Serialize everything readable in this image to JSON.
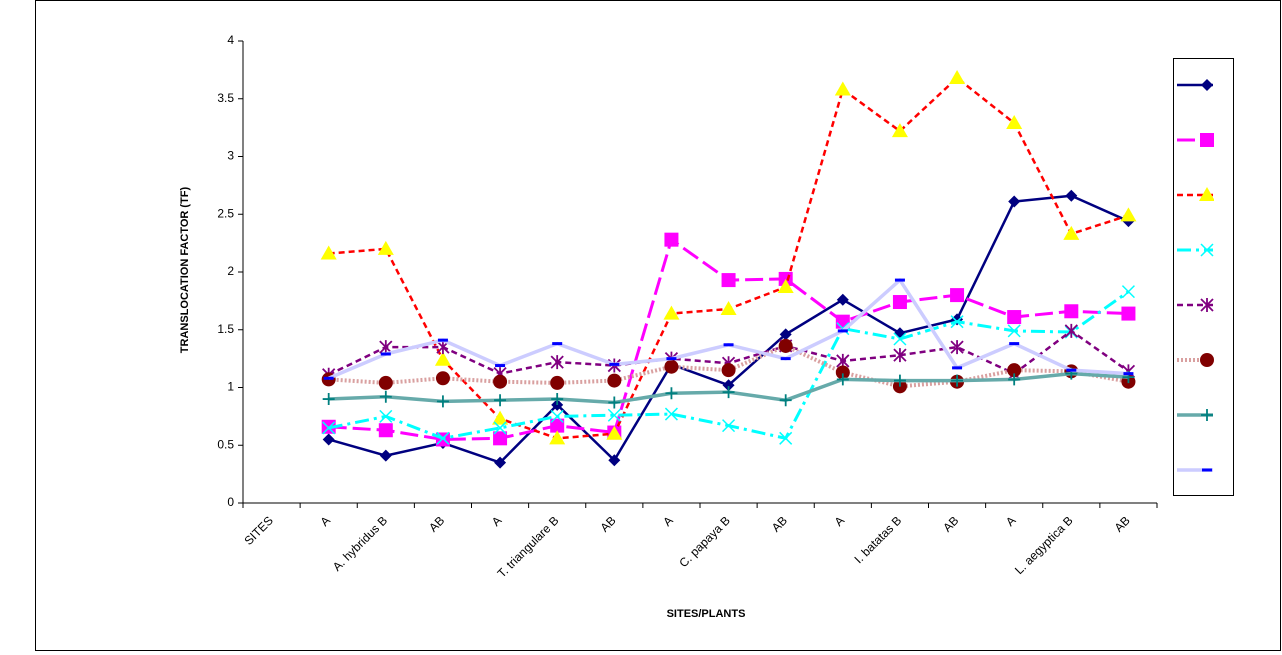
{
  "chart_data": {
    "type": "line",
    "x_label": "SITES/PLANTS",
    "y_label": "TRANSLOCATION FACTOR (TF)",
    "categories": [
      "SITES",
      "A",
      "A.  hybridus B",
      "AB",
      "A",
      "T. triangulare B",
      "AB",
      "A",
      "C. papaya B",
      "AB",
      "A",
      "I. batatas B",
      "AB",
      "A",
      "L. aegyptica B",
      "AB"
    ],
    "ylim": [
      0,
      4
    ],
    "yticks": [
      0,
      0.5,
      1,
      1.5,
      2,
      2.5,
      3,
      3.5,
      4
    ],
    "series": [
      {
        "color": "#000080",
        "marker": "diamond",
        "line_style": "solid",
        "values": [
          null,
          0.55,
          0.41,
          0.52,
          0.35,
          0.85,
          0.37,
          1.2,
          1.02,
          1.46,
          1.76,
          1.47,
          1.59,
          2.61,
          2.66,
          2.44
        ]
      },
      {
        "color": "#ff00ff",
        "marker": "square",
        "line_style": "longdash",
        "values": [
          null,
          0.66,
          0.63,
          0.55,
          0.56,
          0.67,
          0.61,
          2.28,
          1.93,
          1.94,
          1.57,
          1.74,
          1.8,
          1.61,
          1.66,
          1.64
        ]
      },
      {
        "color": "#ff0000",
        "marker_color": "#ffff00",
        "marker": "triangle",
        "line_style": "dashed",
        "values": [
          null,
          2.16,
          2.2,
          1.24,
          0.73,
          0.56,
          0.6,
          1.64,
          1.68,
          1.87,
          3.58,
          3.22,
          3.68,
          3.29,
          2.33,
          2.49
        ]
      },
      {
        "color": "#00ffff",
        "marker": "x",
        "line_style": "dashdot",
        "values": [
          null,
          0.65,
          0.75,
          0.56,
          0.65,
          0.75,
          0.76,
          0.77,
          0.67,
          0.56,
          1.51,
          1.42,
          1.57,
          1.49,
          1.48,
          1.83
        ]
      },
      {
        "color": "#800080",
        "marker": "star",
        "line_style": "dashed",
        "values": [
          null,
          1.11,
          1.35,
          1.35,
          1.12,
          1.22,
          1.19,
          1.25,
          1.21,
          1.36,
          1.23,
          1.28,
          1.35,
          1.12,
          1.49,
          1.14
        ]
      },
      {
        "color": "#d9a0a0",
        "marker_color": "#800000",
        "marker": "circle",
        "line_style": "dotted",
        "values": [
          null,
          1.07,
          1.04,
          1.08,
          1.05,
          1.04,
          1.06,
          1.18,
          1.15,
          1.36,
          1.13,
          1.01,
          1.05,
          1.15,
          1.14,
          1.05
        ]
      },
      {
        "color": "#66aaaa",
        "marker_color": "#008080",
        "marker": "plus",
        "line_style": "thick",
        "values": [
          null,
          0.9,
          0.92,
          0.88,
          0.89,
          0.9,
          0.87,
          0.95,
          0.96,
          0.89,
          1.07,
          1.06,
          1.06,
          1.07,
          1.12,
          1.09
        ]
      },
      {
        "color": "#ccccff",
        "marker_color": "#0000ff",
        "marker": "dash",
        "line_style": "thick",
        "values": [
          null,
          1.08,
          1.29,
          1.41,
          1.19,
          1.38,
          1.2,
          1.25,
          1.37,
          1.25,
          1.49,
          1.93,
          1.17,
          1.38,
          1.15,
          1.12
        ]
      }
    ]
  }
}
